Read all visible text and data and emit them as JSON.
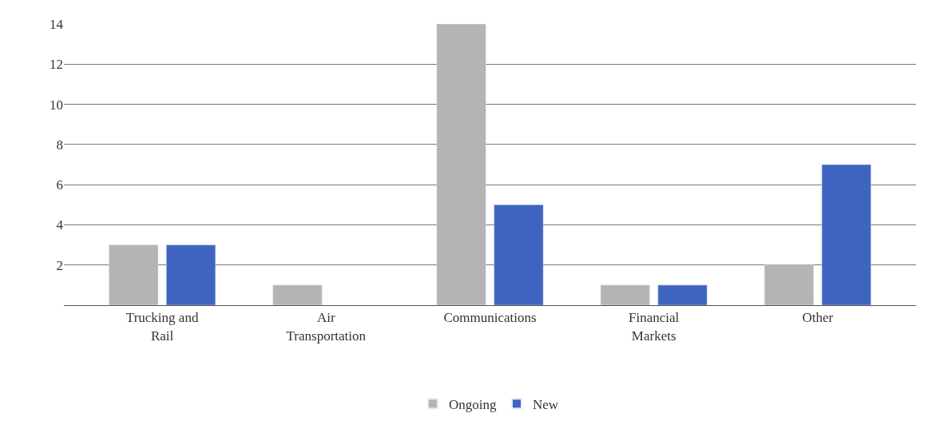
{
  "chart_data": {
    "type": "bar",
    "categories": [
      "Trucking and\nRail",
      "Air\nTransportation",
      "Communications",
      "Financial\nMarkets",
      "Other"
    ],
    "series": [
      {
        "name": "Ongoing",
        "color": "#b4b4b4",
        "values": [
          3,
          1,
          14,
          1,
          2
        ]
      },
      {
        "name": "New",
        "color": "#3f64c0",
        "values": [
          3,
          null,
          5,
          1,
          7
        ]
      }
    ],
    "ylim": [
      0,
      14
    ],
    "yticks": [
      2,
      4,
      6,
      8,
      10,
      12,
      14
    ],
    "grid": "y",
    "legend": "bottom"
  }
}
